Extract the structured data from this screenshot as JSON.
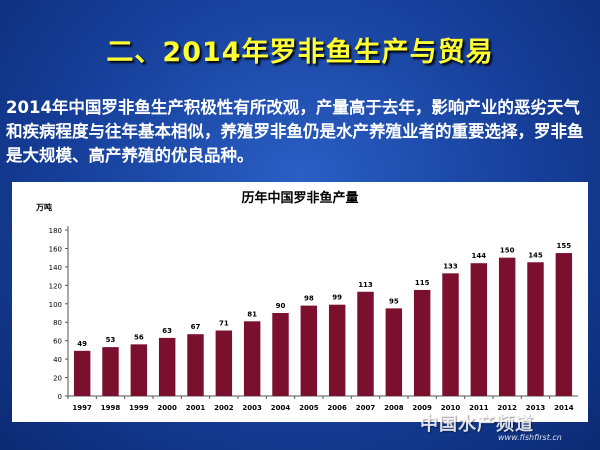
{
  "slide": {
    "title": "二、2014年罗非鱼生产与贸易",
    "paragraph": "2014年中国罗非鱼生产积极性有所改观，产量高于去年，影响产业的恶劣天气和疾病程度与往年基本相似，养殖罗非鱼仍是水产养殖业者的重要选择，罗非鱼是大规模、高产养殖的优良品种。",
    "title_color": "#ffff33"
  },
  "chart_data": {
    "type": "bar",
    "title": "历年中国罗非鱼产量",
    "ylabel": "万吨",
    "xlabel": "",
    "categories": [
      "1997",
      "1998",
      "1999",
      "2000",
      "2001",
      "2002",
      "2003",
      "2004",
      "2005",
      "2006",
      "2007",
      "2008",
      "2009",
      "2010",
      "2011",
      "2012",
      "2013",
      "2014"
    ],
    "values": [
      49,
      53,
      56,
      63,
      67,
      71,
      81,
      90,
      98,
      99,
      113,
      95,
      115,
      133,
      144,
      150,
      145,
      155
    ],
    "ylim": [
      0,
      180
    ],
    "yticks": [
      0,
      20,
      40,
      60,
      80,
      100,
      120,
      140,
      160,
      180
    ],
    "bar_color": "#7a0f2e",
    "grid": false,
    "legend": "none"
  },
  "watermark": {
    "text": "中国水产频道",
    "url": "www.fishfirst.cn"
  }
}
